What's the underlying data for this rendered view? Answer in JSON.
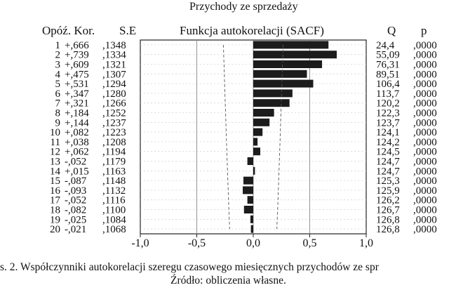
{
  "chart_data": {
    "type": "bar",
    "orientation": "horizontal",
    "title": "Przychody ze sprzedaży",
    "subtitle": "Funkcja autokorelacji (SACF)",
    "column_headers": {
      "lag_corr": "Opóź. Kor.",
      "se": "S.E",
      "q": "Q",
      "p": "p"
    },
    "lags": [
      "1",
      "2",
      "3",
      "4",
      "5",
      "6",
      "7",
      "8",
      "9",
      "10",
      "11",
      "12",
      "13",
      "14",
      "15",
      "16",
      "17",
      "18",
      "19",
      "20"
    ],
    "correlation_labels": [
      "+,666",
      "+,739",
      "+,609",
      "+,475",
      "+,531",
      "+,347",
      "+,321",
      "+,184",
      "+,144",
      "+,082",
      "+,038",
      "+,062",
      "-,052",
      "+,015",
      "-,087",
      "-,093",
      "-,052",
      "-,082",
      "-,025",
      "-,021"
    ],
    "values": [
      0.666,
      0.739,
      0.609,
      0.475,
      0.531,
      0.347,
      0.321,
      0.184,
      0.144,
      0.082,
      0.038,
      0.062,
      -0.052,
      0.015,
      -0.087,
      -0.093,
      -0.052,
      -0.082,
      -0.025,
      -0.021
    ],
    "se": [
      ",1348",
      ",1334",
      ",1321",
      ",1307",
      ",1294",
      ",1280",
      ",1266",
      ",1252",
      ",1237",
      ",1223",
      ",1208",
      ",1194",
      ",1179",
      ",1163",
      ",1148",
      ",1132",
      ",1116",
      ",1100",
      ",1084",
      ",1068"
    ],
    "confidence_limits": [
      0.264,
      0.262,
      0.259,
      0.256,
      0.254,
      0.251,
      0.248,
      0.245,
      0.242,
      0.24,
      0.237,
      0.234,
      0.231,
      0.228,
      0.225,
      0.222,
      0.219,
      0.216,
      0.212,
      0.209
    ],
    "q": [
      "24,4",
      "55,09",
      "76,31",
      "89,51",
      "106,4",
      "113,7",
      "120,2",
      "122,3",
      "123,7",
      "124,1",
      "124,2",
      "124,5",
      "124,7",
      "124,7",
      "125,3",
      "125,9",
      "126,2",
      "126,7",
      "126,8",
      "126,8"
    ],
    "p": [
      ",0000",
      ",0000",
      ",0000",
      ",0000",
      ",0000",
      ",0000",
      ",0000",
      ",0000",
      ",0000",
      ",0000",
      ",0000",
      ",0000",
      ",0000",
      ",0000",
      ",0000",
      ",0000",
      ",0000",
      ",0000",
      ",0000",
      ",0000"
    ],
    "xticks": [
      "-1,0",
      "-0,5",
      "0,0",
      "0,5",
      "1,0"
    ],
    "xlim": [
      -1,
      1
    ],
    "grid": true,
    "colors": {
      "bar": "#1c1c1c",
      "frame": "#222222",
      "limits": "#555555"
    }
  },
  "caption": {
    "line1": "s. 2. Współczynniki autokorelacji szeregu czasowego miesięcznych przychodów ze spr",
    "line2": "Źródło: obliczenia własne."
  }
}
